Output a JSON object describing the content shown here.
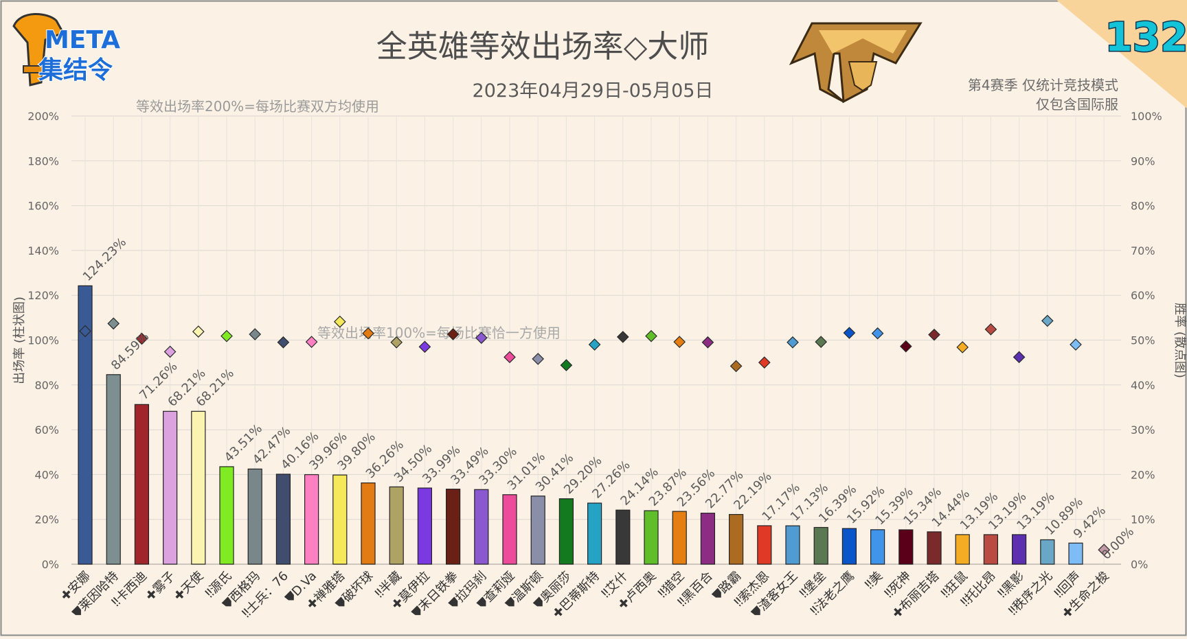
{
  "logo": {
    "line1": "META",
    "line2": "集结令"
  },
  "issue_number": "132",
  "chart_data": {
    "type": "bar",
    "title": "全英雄等效出场率◇大师",
    "subtitle": "2023年04月29日-05月05日",
    "note_top_left": "等效出场率200%=每场比赛双方均使用",
    "note_mid": "等效出场率100%=每场比赛恰一方使用",
    "note_right_1": "第4赛季 仅统计竞技模式",
    "note_right_2": "仅包含国际服",
    "ylabel_left": "出场率 (柱状图)",
    "ylabel_right": "胜率 (散点图)",
    "ylim_left": [
      0,
      200
    ],
    "ylim_right": [
      0,
      100
    ],
    "yticks_left": [
      "0%",
      "20%",
      "40%",
      "60%",
      "80%",
      "100%",
      "120%",
      "140%",
      "160%",
      "180%",
      "200%"
    ],
    "yticks_right": [
      "0%",
      "10%",
      "20%",
      "30%",
      "40%",
      "50%",
      "60%",
      "70%",
      "80%",
      "90%",
      "100%"
    ],
    "categories": [
      "✚安娜",
      "⛊莱因哈特",
      "‼卡西迪",
      "✚雾子",
      "✚天使",
      "‼源氏",
      "⛊西格玛",
      "‼士兵：76",
      "⛊D.Va",
      "✚禅雅塔",
      "⛊破坏球",
      "‼半藏",
      "✚莫伊拉",
      "⛊末日铁拳",
      "⛊拉玛刹",
      "⛊查莉娅",
      "⛊温斯顿",
      "⛊奥丽莎",
      "✚巴蒂斯特",
      "‼艾什",
      "✚卢西奥",
      "‼猎空",
      "‼黑百合",
      "⛊路霸",
      "‼索杰恩",
      "⛊渣客女王",
      "‼堡垒",
      "‼法老之鹰",
      "‼美",
      "‼死神",
      "✚布丽吉塔",
      "‼狂鼠",
      "‼托比昂",
      "‼黑影",
      "‼秩序之光",
      "‼回声",
      "✚生命之梭"
    ],
    "series": [
      {
        "type": "bar",
        "values": [
          124.23,
          84.59,
          71.26,
          68.21,
          68.21,
          43.51,
          42.47,
          40.16,
          39.96,
          39.8,
          36.26,
          34.5,
          33.99,
          33.49,
          33.3,
          31.01,
          30.41,
          29.2,
          27.26,
          24.14,
          23.87,
          23.56,
          22.77,
          22.19,
          17.17,
          17.13,
          16.39,
          15.92,
          15.39,
          15.34,
          14.44,
          13.19,
          13.19,
          13.19,
          10.89,
          9.42,
          0.0
        ],
        "labels": [
          "124.23%",
          "84.59%",
          "71.26%",
          "68.21%",
          "68.21%",
          "43.51%",
          "42.47%",
          "40.16%",
          "39.96%",
          "39.80%",
          "36.26%",
          "34.50%",
          "33.99%",
          "33.49%",
          "33.30%",
          "31.01%",
          "30.41%",
          "29.20%",
          "27.26%",
          "24.14%",
          "23.87%",
          "23.56%",
          "22.77%",
          "22.19%",
          "17.17%",
          "17.13%",
          "16.39%",
          "15.92%",
          "15.39%",
          "15.34%",
          "14.44%",
          "13.19%",
          "13.19%",
          "13.19%",
          "10.89%",
          "9.42%",
          "0.00%"
        ]
      },
      {
        "type": "scatter",
        "values": [
          52.0,
          53.7,
          50.3,
          47.4,
          51.9,
          50.9,
          51.3,
          49.5,
          49.6,
          54.1,
          51.5,
          49.5,
          48.5,
          51.3,
          50.5,
          46.2,
          45.8,
          44.4,
          49.0,
          50.7,
          50.9,
          49.6,
          49.5,
          44.2,
          45.0,
          49.5,
          49.6,
          51.6,
          51.5,
          48.6,
          51.2,
          48.4,
          52.4,
          46.2,
          54.3,
          49.0,
          3.2
        ]
      }
    ],
    "colors": [
      "#3a5a96",
      "#7d8f91",
      "#a1262c",
      "#dca2e0",
      "#fbf3b0",
      "#80ea22",
      "#79868a",
      "#404d6f",
      "#fc80c2",
      "#f5e85a",
      "#e37b15",
      "#aea264",
      "#7b39e1",
      "#6b2015",
      "#8a58cf",
      "#ec4c9a",
      "#8b8ea9",
      "#137a1f",
      "#26a2c5",
      "#383838",
      "#5fbe29",
      "#e57f13",
      "#8c2c83",
      "#ab6b20",
      "#e03a26",
      "#4f9bd2",
      "#5a7852",
      "#0955c9",
      "#4094ea",
      "#5a0018",
      "#7b2a2b",
      "#f3ac23",
      "#ba4b43",
      "#5c2fb1",
      "#6aa6c6",
      "#7ebcf5",
      "#c39aa7"
    ],
    "grid": true
  }
}
